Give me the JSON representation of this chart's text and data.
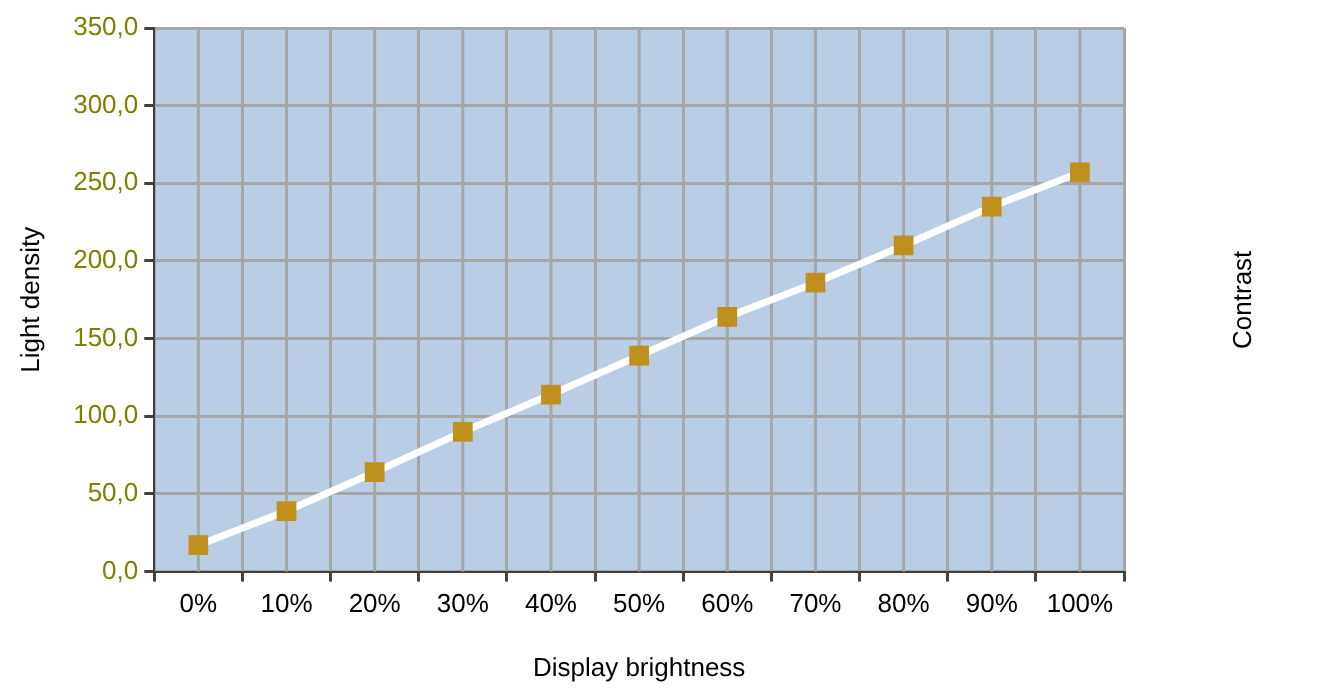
{
  "chart_data": {
    "type": "line",
    "xlabel": "Display brightness",
    "ylabel": "Light density",
    "annotations": [
      "Contrast"
    ],
    "categories": [
      "0%",
      "10%",
      "20%",
      "30%",
      "40%",
      "50%",
      "60%",
      "70%",
      "80%",
      "90%",
      "100%"
    ],
    "series": [
      {
        "color": "#ffffff",
        "values": [
          17,
          39,
          64,
          90,
          114,
          139,
          164,
          186,
          210,
          235,
          257
        ]
      }
    ],
    "ylim": [
      0,
      350
    ],
    "yticks": [
      {
        "value": 0,
        "label": "0,0"
      },
      {
        "value": 50,
        "label": "50,0"
      },
      {
        "value": 100,
        "label": "100,0"
      },
      {
        "value": 150,
        "label": "150,0"
      },
      {
        "value": 200,
        "label": "200,0"
      },
      {
        "value": 250,
        "label": "250,0"
      },
      {
        "value": 300,
        "label": "300,0"
      },
      {
        "value": 350,
        "label": "350,0"
      }
    ],
    "grid": true,
    "legend": false,
    "marker": "square",
    "line_style": "solid"
  }
}
